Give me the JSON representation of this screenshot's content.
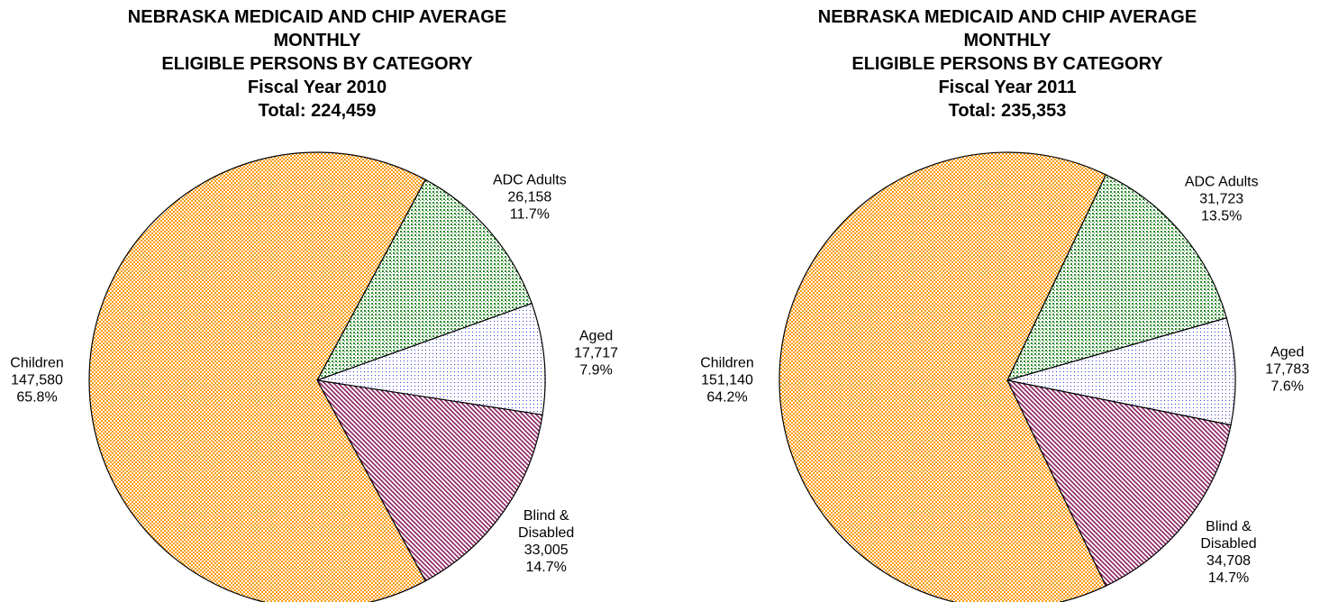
{
  "chart_data": [
    {
      "type": "pie",
      "title": [
        "NEBRASKA MEDICAID AND CHIP AVERAGE",
        "MONTHLY",
        "ELIGIBLE PERSONS BY CATEGORY",
        "Fiscal Year 2010",
        "Total: 224,459"
      ],
      "categories": [
        "ADC Adults",
        "Aged",
        "Blind & Disabled",
        "Children"
      ],
      "values": [
        26158,
        17717,
        33005,
        147580
      ],
      "value_labels": [
        "26,158",
        "17,717",
        "33,005",
        "147,580"
      ],
      "percent_labels": [
        "11.7%",
        "7.9%",
        "14.7%",
        "65.8%"
      ],
      "colors": [
        "#2e8b2e",
        "#3a3ad8",
        "#8b2060",
        "#ff9900"
      ]
    },
    {
      "type": "pie",
      "title": [
        "NEBRASKA MEDICAID AND CHIP AVERAGE",
        "MONTHLY",
        "ELIGIBLE PERSONS BY CATEGORY",
        "Fiscal Year 2011",
        "Total: 235,353"
      ],
      "categories": [
        "ADC Adults",
        "Aged",
        "Blind & Disabled",
        "Children"
      ],
      "values": [
        31723,
        17783,
        34708,
        151140
      ],
      "value_labels": [
        "31,723",
        "17,783",
        "34,708",
        "151,140"
      ],
      "percent_labels": [
        "13.5%",
        "7.6%",
        "14.7%",
        "64.2%"
      ],
      "colors": [
        "#2e8b2e",
        "#3a3ad8",
        "#8b2060",
        "#ff9900"
      ]
    }
  ]
}
